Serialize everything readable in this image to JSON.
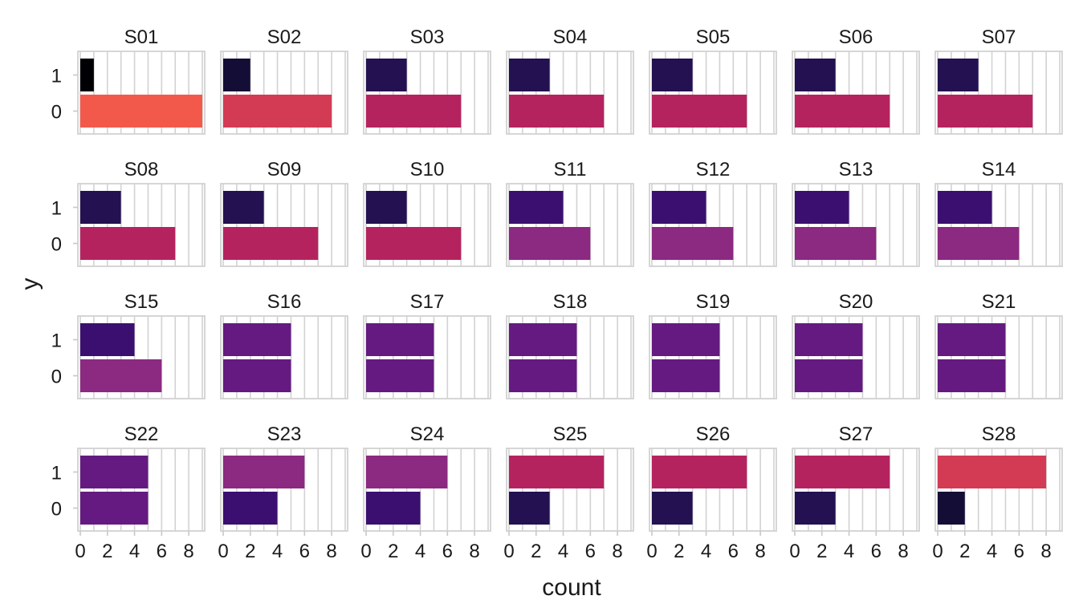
{
  "chart_data": {
    "type": "bar",
    "orientation": "horizontal",
    "xlabel": "count",
    "ylabel": "y",
    "xlim": [
      0,
      9
    ],
    "xticks": [
      "0",
      "2",
      "4",
      "6",
      "8"
    ],
    "y_categories": [
      "1",
      "0"
    ],
    "grid": true,
    "legend": "none",
    "fill_scale": "magma (by count)",
    "panels": [
      {
        "name": "S01",
        "counts": {
          "1": 1,
          "0": 9
        },
        "colors": {
          "1": "#000004",
          "0": "#f3594b"
        }
      },
      {
        "name": "S02",
        "counts": {
          "1": 2,
          "0": 8
        },
        "colors": {
          "1": "#140e36",
          "0": "#d33b55"
        }
      },
      {
        "name": "S03",
        "counts": {
          "1": 3,
          "0": 7
        },
        "colors": {
          "1": "#231151",
          "0": "#b5235f"
        }
      },
      {
        "name": "S04",
        "counts": {
          "1": 3,
          "0": 7
        },
        "colors": {
          "1": "#231151",
          "0": "#b5235f"
        }
      },
      {
        "name": "S05",
        "counts": {
          "1": 3,
          "0": 7
        },
        "colors": {
          "1": "#231151",
          "0": "#b5235f"
        }
      },
      {
        "name": "S06",
        "counts": {
          "1": 3,
          "0": 7
        },
        "colors": {
          "1": "#231151",
          "0": "#b5235f"
        }
      },
      {
        "name": "S07",
        "counts": {
          "1": 3,
          "0": 7
        },
        "colors": {
          "1": "#231151",
          "0": "#b5235f"
        }
      },
      {
        "name": "S08",
        "counts": {
          "1": 3,
          "0": 7
        },
        "colors": {
          "1": "#231151",
          "0": "#b5235f"
        }
      },
      {
        "name": "S09",
        "counts": {
          "1": 3,
          "0": 7
        },
        "colors": {
          "1": "#231151",
          "0": "#b5235f"
        }
      },
      {
        "name": "S10",
        "counts": {
          "1": 3,
          "0": 7
        },
        "colors": {
          "1": "#231151",
          "0": "#b5235f"
        }
      },
      {
        "name": "S11",
        "counts": {
          "1": 4,
          "0": 6
        },
        "colors": {
          "1": "#3b0f70",
          "0": "#8c2981"
        }
      },
      {
        "name": "S12",
        "counts": {
          "1": 4,
          "0": 6
        },
        "colors": {
          "1": "#3b0f70",
          "0": "#8c2981"
        }
      },
      {
        "name": "S13",
        "counts": {
          "1": 4,
          "0": 6
        },
        "colors": {
          "1": "#3b0f70",
          "0": "#8c2981"
        }
      },
      {
        "name": "S14",
        "counts": {
          "1": 4,
          "0": 6
        },
        "colors": {
          "1": "#3b0f70",
          "0": "#8c2981"
        }
      },
      {
        "name": "S15",
        "counts": {
          "1": 4,
          "0": 6
        },
        "colors": {
          "1": "#3b0f70",
          "0": "#8c2981"
        }
      },
      {
        "name": "S16",
        "counts": {
          "1": 5,
          "0": 5
        },
        "colors": {
          "1": "#641a80",
          "0": "#641a80"
        }
      },
      {
        "name": "S17",
        "counts": {
          "1": 5,
          "0": 5
        },
        "colors": {
          "1": "#641a80",
          "0": "#641a80"
        }
      },
      {
        "name": "S18",
        "counts": {
          "1": 5,
          "0": 5
        },
        "colors": {
          "1": "#641a80",
          "0": "#641a80"
        }
      },
      {
        "name": "S19",
        "counts": {
          "1": 5,
          "0": 5
        },
        "colors": {
          "1": "#641a80",
          "0": "#641a80"
        }
      },
      {
        "name": "S20",
        "counts": {
          "1": 5,
          "0": 5
        },
        "colors": {
          "1": "#641a80",
          "0": "#641a80"
        }
      },
      {
        "name": "S21",
        "counts": {
          "1": 5,
          "0": 5
        },
        "colors": {
          "1": "#641a80",
          "0": "#641a80"
        }
      },
      {
        "name": "S22",
        "counts": {
          "1": 5,
          "0": 5
        },
        "colors": {
          "1": "#641a80",
          "0": "#641a80"
        }
      },
      {
        "name": "S23",
        "counts": {
          "1": 6,
          "0": 4
        },
        "colors": {
          "1": "#8c2981",
          "0": "#3b0f70"
        }
      },
      {
        "name": "S24",
        "counts": {
          "1": 6,
          "0": 4
        },
        "colors": {
          "1": "#8c2981",
          "0": "#3b0f70"
        }
      },
      {
        "name": "S25",
        "counts": {
          "1": 7,
          "0": 3
        },
        "colors": {
          "1": "#b5235f",
          "0": "#231151"
        }
      },
      {
        "name": "S26",
        "counts": {
          "1": 7,
          "0": 3
        },
        "colors": {
          "1": "#b5235f",
          "0": "#231151"
        }
      },
      {
        "name": "S27",
        "counts": {
          "1": 7,
          "0": 3
        },
        "colors": {
          "1": "#b5235f",
          "0": "#231151"
        }
      },
      {
        "name": "S28",
        "counts": {
          "1": 8,
          "0": 2
        },
        "colors": {
          "1": "#d33b55",
          "0": "#140e36"
        }
      }
    ]
  }
}
